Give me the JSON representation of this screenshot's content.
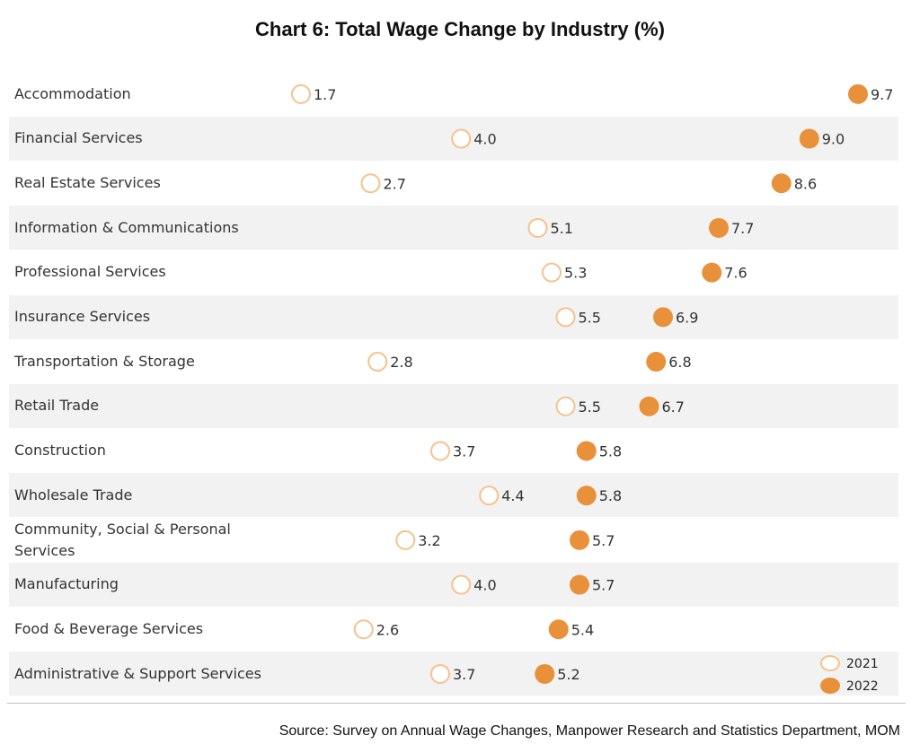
{
  "chart_data": {
    "type": "scatter",
    "title": "Chart 6: Total Wage Change by Industry (%)",
    "categories": [
      "Accommodation",
      "Financial Services",
      "Real Estate Services",
      "Information & Communications",
      "Professional Services",
      "Insurance Services",
      "Transportation & Storage",
      "Retail Trade",
      "Construction",
      "Wholesale Trade",
      "Community, Social & Personal Services",
      "Manufacturing",
      "Food & Beverage Services",
      "Administrative & Support Services"
    ],
    "series": [
      {
        "name": "2021",
        "values": [
          1.7,
          4.0,
          2.7,
          5.1,
          5.3,
          5.5,
          2.8,
          5.5,
          3.7,
          4.4,
          3.2,
          4.0,
          2.6,
          3.7
        ]
      },
      {
        "name": "2022",
        "values": [
          9.7,
          9.0,
          8.6,
          7.7,
          7.6,
          6.9,
          6.8,
          6.7,
          5.8,
          5.8,
          5.7,
          5.7,
          5.4,
          5.2
        ]
      }
    ],
    "legend_position": "bottom-right",
    "colors": {
      "2021": "#f5c28c",
      "2022": "#e8913a",
      "row_shade": "#f2f2f2"
    },
    "source": "Source: Survey on Annual Wage Changes, Manpower Research and Statistics Department, MOM"
  }
}
